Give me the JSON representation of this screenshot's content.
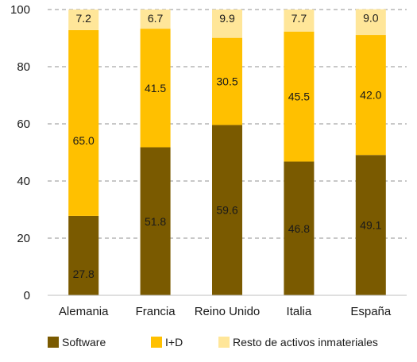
{
  "chart_data": {
    "type": "bar",
    "stacked": true,
    "normalized_percent": true,
    "categories": [
      "Alemania",
      "Francia",
      "Reino Unido",
      "Italia",
      "España"
    ],
    "series": [
      {
        "name": "Software",
        "values": [
          27.8,
          51.8,
          59.6,
          46.8,
          49.1
        ],
        "color": "#7a5a00"
      },
      {
        "name": "I+D",
        "values": [
          65.0,
          41.5,
          30.5,
          45.5,
          42.0
        ],
        "color": "#ffc000"
      },
      {
        "name": "Resto de activos inmateriales",
        "values": [
          7.2,
          6.7,
          9.9,
          7.7,
          9.0
        ],
        "color": "#ffe699"
      }
    ],
    "yticks": [
      "0",
      "20",
      "40",
      "60",
      "80",
      "100"
    ],
    "ylim": [
      0,
      100
    ],
    "grid": true,
    "legend_position": "bottom"
  }
}
